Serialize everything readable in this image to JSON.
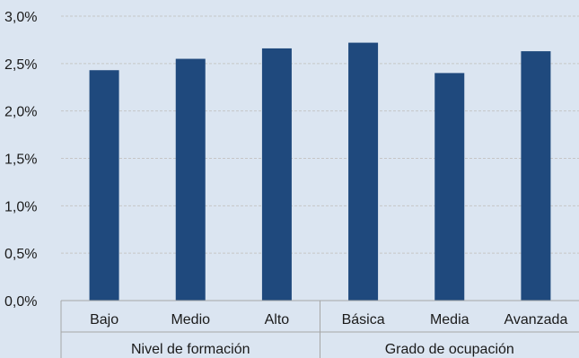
{
  "chart_data": {
    "type": "bar",
    "groups": [
      {
        "label": "Nivel de formación",
        "categories": [
          "Bajo",
          "Medio",
          "Alto"
        ]
      },
      {
        "label": "Grado de ocupación",
        "categories": [
          "Básica",
          "Media",
          "Avanzada"
        ]
      }
    ],
    "categories": [
      "Bajo",
      "Medio",
      "Alto",
      "Básica",
      "Media",
      "Avanzada"
    ],
    "values": [
      2.43,
      2.55,
      2.66,
      2.72,
      2.4,
      2.63
    ],
    "ylim": [
      0,
      3
    ],
    "yticks": [
      0,
      0.5,
      1,
      1.5,
      2,
      2.5,
      3
    ],
    "ytick_labels": [
      "0,0%",
      "0,5%",
      "1,0%",
      "1,5%",
      "2,0%",
      "2,5%",
      "3,0%"
    ],
    "title": "",
    "xlabel": "",
    "ylabel": "",
    "grid": true,
    "colors": {
      "bar": "#1f497d",
      "background": "#dbe5f1",
      "grid": "#c6c6c6",
      "axis": "#a6a6a6"
    }
  }
}
